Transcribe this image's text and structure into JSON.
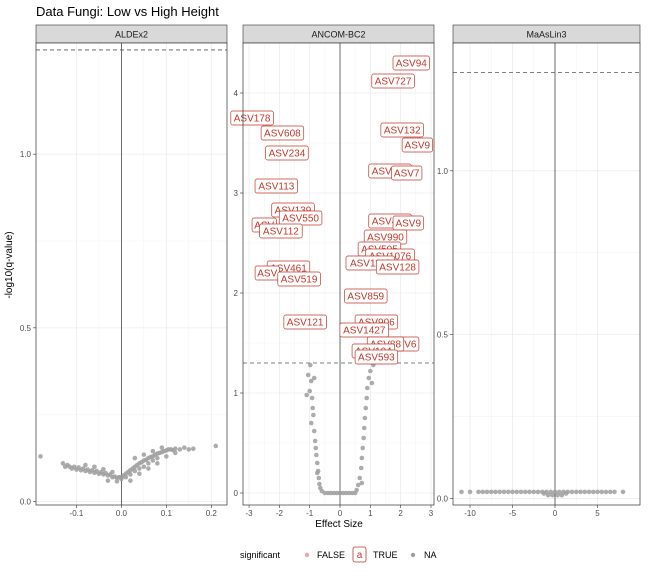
{
  "chart_data": {
    "type": "scatter",
    "title": "Data Fungi: Low vs High Height",
    "xlabel": "Effect Size",
    "ylabel": "-log10(q-value)",
    "threshold_y": 1.3,
    "colors": {
      "label_red": "#c0392b",
      "point_grey": "#9e9e9e",
      "strip_bg": "#d9d9d9",
      "grid": "#ebebeb"
    },
    "legend": {
      "title": "significant",
      "entries": [
        {
          "key": "FALSE",
          "label": "FALSE",
          "symbol": "dot-pink"
        },
        {
          "key": "TRUE",
          "label": "TRUE",
          "symbol": "a-box"
        },
        {
          "key": "NA",
          "label": "NA",
          "symbol": "dot-grey"
        }
      ]
    },
    "panels": [
      {
        "name": "ALDEx2",
        "xlim": [
          -0.19,
          0.235
        ],
        "ylim": [
          -0.01,
          1.32
        ],
        "xticks": [
          -0.1,
          0.0,
          0.1,
          0.2
        ],
        "xtick_labels": [
          "-0.1",
          "0.0",
          "0.1",
          "0.2"
        ],
        "yticks": [
          0.0,
          0.5,
          1.0
        ],
        "ytick_labels": [
          "0.0",
          "0.5",
          "1.0"
        ],
        "points": [
          [
            -0.18,
            0.13
          ],
          [
            -0.13,
            0.11
          ],
          [
            -0.125,
            0.1
          ],
          [
            -0.12,
            0.105
          ],
          [
            -0.115,
            0.1
          ],
          [
            -0.11,
            0.095
          ],
          [
            -0.105,
            0.1
          ],
          [
            -0.1,
            0.092
          ],
          [
            -0.095,
            0.098
          ],
          [
            -0.09,
            0.09
          ],
          [
            -0.085,
            0.095
          ],
          [
            -0.08,
            0.088
          ],
          [
            -0.075,
            0.092
          ],
          [
            -0.07,
            0.085
          ],
          [
            -0.065,
            0.09
          ],
          [
            -0.06,
            0.083
          ],
          [
            -0.055,
            0.088
          ],
          [
            -0.05,
            0.08
          ],
          [
            -0.045,
            0.085
          ],
          [
            -0.04,
            0.078
          ],
          [
            -0.035,
            0.082
          ],
          [
            -0.03,
            0.075
          ],
          [
            -0.025,
            0.078
          ],
          [
            -0.02,
            0.07
          ],
          [
            -0.015,
            0.072
          ],
          [
            -0.01,
            0.068
          ],
          [
            -0.005,
            0.07
          ],
          [
            0.0,
            0.07
          ],
          [
            0.005,
            0.075
          ],
          [
            0.01,
            0.08
          ],
          [
            0.015,
            0.085
          ],
          [
            0.02,
            0.09
          ],
          [
            0.025,
            0.095
          ],
          [
            0.03,
            0.1
          ],
          [
            0.035,
            0.105
          ],
          [
            0.04,
            0.11
          ],
          [
            0.045,
            0.113
          ],
          [
            0.05,
            0.118
          ],
          [
            0.055,
            0.12
          ],
          [
            0.06,
            0.125
          ],
          [
            0.065,
            0.128
          ],
          [
            0.07,
            0.13
          ],
          [
            0.075,
            0.135
          ],
          [
            0.08,
            0.138
          ],
          [
            0.085,
            0.14
          ],
          [
            0.09,
            0.142
          ],
          [
            0.095,
            0.145
          ],
          [
            0.1,
            0.147
          ],
          [
            0.105,
            0.15
          ],
          [
            0.11,
            0.15
          ],
          [
            0.115,
            0.148
          ],
          [
            0.12,
            0.152
          ],
          [
            0.13,
            0.15
          ],
          [
            0.14,
            0.155
          ],
          [
            0.15,
            0.15
          ],
          [
            0.16,
            0.152
          ],
          [
            0.21,
            0.16
          ],
          [
            0.0,
            0.065
          ],
          [
            0.01,
            0.07
          ],
          [
            0.02,
            0.078
          ],
          [
            0.03,
            0.088
          ],
          [
            0.04,
            0.095
          ],
          [
            0.05,
            0.1
          ],
          [
            0.06,
            0.11
          ],
          [
            0.07,
            0.118
          ],
          [
            0.08,
            0.125
          ],
          [
            -0.02,
            0.085
          ],
          [
            -0.04,
            0.093
          ],
          [
            -0.06,
            0.1
          ],
          [
            -0.08,
            0.105
          ],
          [
            0.03,
            0.125
          ],
          [
            0.05,
            0.135
          ],
          [
            0.07,
            0.145
          ],
          [
            0.09,
            0.155
          ],
          [
            0.02,
            0.06
          ],
          [
            0.04,
            0.08
          ],
          [
            -0.03,
            0.06
          ],
          [
            -0.01,
            0.058
          ],
          [
            0.06,
            0.095
          ],
          [
            0.08,
            0.11
          ],
          [
            0.1,
            0.13
          ],
          [
            0.12,
            0.14
          ]
        ]
      },
      {
        "name": "ANCOM-BC2",
        "xlim": [
          -3.2,
          3.1
        ],
        "ylim": [
          -0.12,
          4.5
        ],
        "xticks": [
          -3,
          -2,
          -1,
          0,
          1,
          2,
          3
        ],
        "xtick_labels": [
          "-3",
          "-2",
          "-1",
          "0",
          "1",
          "2",
          "3"
        ],
        "yticks": [
          0,
          1,
          2,
          3,
          4
        ],
        "ytick_labels": [
          "0",
          "1",
          "2",
          "3",
          "4"
        ],
        "points": [
          [
            -0.98,
            1.28
          ],
          [
            -1.05,
            1.18
          ],
          [
            -0.95,
            1.12
          ],
          [
            -1.0,
            1.02
          ],
          [
            -0.92,
            0.95
          ],
          [
            -0.9,
            0.85
          ],
          [
            -0.88,
            0.78
          ],
          [
            -0.95,
            0.7
          ],
          [
            -0.85,
            0.62
          ],
          [
            -0.82,
            0.52
          ],
          [
            -0.8,
            0.45
          ],
          [
            -0.78,
            0.38
          ],
          [
            -0.75,
            0.3
          ],
          [
            -0.72,
            0.22
          ],
          [
            -0.7,
            0.15
          ],
          [
            -0.68,
            0.09
          ],
          [
            -0.65,
            0.05
          ],
          [
            -0.6,
            0.02
          ],
          [
            -0.5,
            0.0
          ],
          [
            -0.4,
            0.0
          ],
          [
            -0.3,
            0.0
          ],
          [
            -0.2,
            0.0
          ],
          [
            -0.1,
            0.0
          ],
          [
            0.0,
            0.0
          ],
          [
            0.1,
            0.0
          ],
          [
            0.2,
            0.0
          ],
          [
            0.3,
            0.0
          ],
          [
            0.4,
            0.0
          ],
          [
            0.5,
            0.0
          ],
          [
            0.55,
            0.03
          ],
          [
            0.6,
            0.08
          ],
          [
            0.65,
            0.15
          ],
          [
            0.7,
            0.25
          ],
          [
            0.72,
            0.35
          ],
          [
            0.75,
            0.45
          ],
          [
            0.78,
            0.55
          ],
          [
            0.8,
            0.65
          ],
          [
            0.82,
            0.75
          ],
          [
            0.85,
            0.85
          ],
          [
            0.88,
            0.95
          ],
          [
            0.9,
            1.05
          ],
          [
            0.95,
            1.15
          ],
          [
            1.0,
            1.22
          ],
          [
            1.1,
            1.28
          ],
          [
            1.05,
            1.1
          ],
          [
            -1.1,
            0.98
          ],
          [
            -0.85,
            1.15
          ],
          [
            0.72,
            0.1
          ],
          [
            -0.75,
            0.2
          ]
        ],
        "sig_labels": [
          {
            "name": "ASV94",
            "x": 2.35,
            "y": 4.3
          },
          {
            "name": "ASV727",
            "x": 1.75,
            "y": 4.12
          },
          {
            "name": "ASV178",
            "x": -2.9,
            "y": 3.75
          },
          {
            "name": "ASV608",
            "x": -1.9,
            "y": 3.6
          },
          {
            "name": "ASV132",
            "x": 2.05,
            "y": 3.63
          },
          {
            "name": "ASV9",
            "x": 2.55,
            "y": 3.48
          },
          {
            "name": "ASV234",
            "x": -1.75,
            "y": 3.4
          },
          {
            "name": "ASV572",
            "x": 1.65,
            "y": 3.22
          },
          {
            "name": "ASV7",
            "x": 2.2,
            "y": 3.2
          },
          {
            "name": "ASV113",
            "x": -2.1,
            "y": 3.07
          },
          {
            "name": "ASV139",
            "x": -1.55,
            "y": 2.83
          },
          {
            "name": "ASV550",
            "x": -1.3,
            "y": 2.75
          },
          {
            "name": "ASV",
            "x": -2.5,
            "y": 2.68
          },
          {
            "name": "ASV112",
            "x": -1.95,
            "y": 2.62
          },
          {
            "name": "ASV494",
            "x": 1.65,
            "y": 2.72
          },
          {
            "name": "ASV9",
            "x": 2.25,
            "y": 2.7
          },
          {
            "name": "ASV990",
            "x": 1.5,
            "y": 2.56
          },
          {
            "name": "ASV505",
            "x": 1.3,
            "y": 2.44
          },
          {
            "name": "ASV1076",
            "x": 1.65,
            "y": 2.37
          },
          {
            "name": "ASV1112",
            "x": 1.0,
            "y": 2.3
          },
          {
            "name": "ASV128",
            "x": 1.9,
            "y": 2.26
          },
          {
            "name": "ASV461",
            "x": -1.7,
            "y": 2.25
          },
          {
            "name": "ASV",
            "x": -2.4,
            "y": 2.2
          },
          {
            "name": "ASV519",
            "x": -1.35,
            "y": 2.14
          },
          {
            "name": "ASV859",
            "x": 0.85,
            "y": 1.97
          },
          {
            "name": "ASV121",
            "x": -1.15,
            "y": 1.71
          },
          {
            "name": "ASV906",
            "x": 1.2,
            "y": 1.71
          },
          {
            "name": "ASV1427",
            "x": 0.8,
            "y": 1.63
          },
          {
            "name": "ASV6",
            "x": 2.1,
            "y": 1.49
          },
          {
            "name": "ASV88",
            "x": 1.5,
            "y": 1.49
          },
          {
            "name": "ASV104",
            "x": 1.1,
            "y": 1.42
          },
          {
            "name": "ASV593",
            "x": 1.2,
            "y": 1.36
          }
        ]
      },
      {
        "name": "MaAsLin3",
        "xlim": [
          -12,
          10
        ],
        "ylim": [
          -0.02,
          1.39
        ],
        "xticks": [
          -10,
          -5,
          0,
          5
        ],
        "xtick_labels": [
          "-10",
          "-5",
          "0",
          "5"
        ],
        "yticks": [
          0.0,
          0.5,
          1.0
        ],
        "ytick_labels": [
          "0.0",
          "0.5",
          "1.0"
        ],
        "points": [
          [
            -11,
            0.02
          ],
          [
            -10,
            0.02
          ],
          [
            -9,
            0.02
          ],
          [
            -8.5,
            0.02
          ],
          [
            -8,
            0.02
          ],
          [
            -7.5,
            0.02
          ],
          [
            -7,
            0.02
          ],
          [
            -6.5,
            0.02
          ],
          [
            -6,
            0.02
          ],
          [
            -5.5,
            0.02
          ],
          [
            -5,
            0.02
          ],
          [
            -4.5,
            0.02
          ],
          [
            -4,
            0.02
          ],
          [
            -3.5,
            0.02
          ],
          [
            -3,
            0.02
          ],
          [
            -2.5,
            0.02
          ],
          [
            -2,
            0.02
          ],
          [
            -1.5,
            0.02
          ],
          [
            -1,
            0.02
          ],
          [
            -0.5,
            0.02
          ],
          [
            0,
            0.02
          ],
          [
            0.5,
            0.02
          ],
          [
            1,
            0.02
          ],
          [
            1.5,
            0.02
          ],
          [
            2,
            0.02
          ],
          [
            2.5,
            0.02
          ],
          [
            3,
            0.02
          ],
          [
            3.5,
            0.02
          ],
          [
            4,
            0.02
          ],
          [
            4.5,
            0.02
          ],
          [
            5,
            0.02
          ],
          [
            5.5,
            0.02
          ],
          [
            6,
            0.02
          ],
          [
            6.5,
            0.02
          ],
          [
            7,
            0.02
          ],
          [
            8,
            0.02
          ],
          [
            -0.3,
            0.01
          ],
          [
            0.3,
            0.01
          ],
          [
            0.8,
            0.01
          ],
          [
            -0.8,
            0.01
          ],
          [
            1.3,
            0.015
          ],
          [
            -1.3,
            0.015
          ]
        ]
      }
    ]
  }
}
